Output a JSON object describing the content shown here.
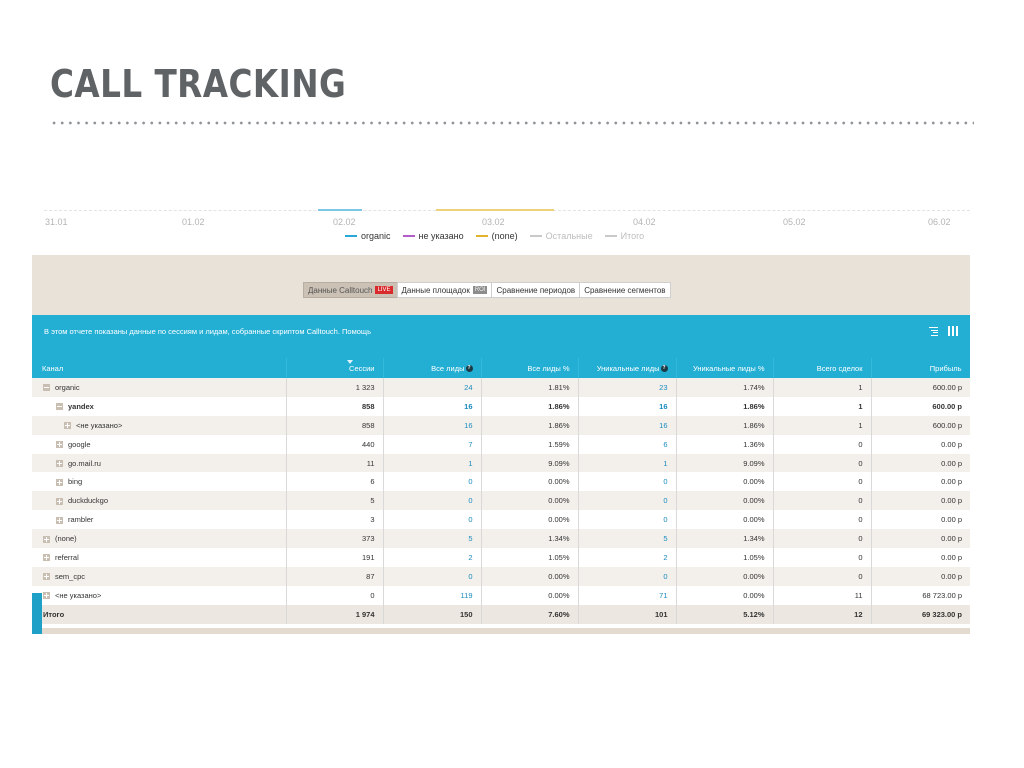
{
  "slide": {
    "title": "CALL TRACKING"
  },
  "chart": {
    "x_ticks": [
      "31.01",
      "01.02",
      "02.02",
      "03.02",
      "04.02",
      "05.02",
      "06.02"
    ],
    "legend": [
      {
        "label": "organic",
        "color": "#2aa8d8",
        "muted": false
      },
      {
        "label": "не указано",
        "color": "#b45cc7",
        "muted": false
      },
      {
        "label": "(none)",
        "color": "#e0b22e",
        "muted": false
      },
      {
        "label": "Остальные",
        "color": "#c9c9c9",
        "muted": true
      },
      {
        "label": "Итого",
        "color": "#c9c9c9",
        "muted": true
      }
    ]
  },
  "tabs": {
    "items": [
      {
        "label": "Данные Calltouch",
        "badge": "LIVE",
        "active": true
      },
      {
        "label": "Данные площадок",
        "badge": "ROI",
        "active": false
      },
      {
        "label": "Сравнение периодов",
        "badge": "",
        "active": false
      },
      {
        "label": "Сравнение сегментов",
        "badge": "",
        "active": false
      }
    ]
  },
  "info": {
    "text": "В этом отчете показаны данные по сессиям и лидам, собранные скриптом Calltouch.",
    "help_link": "Помощь",
    "sort_icon": "sort-lines-icon",
    "columns_icon": "columns-icon"
  },
  "table": {
    "headers": [
      "Канал",
      "Сессии",
      "Все лиды",
      "Все лиды %",
      "Уникальные лиды",
      "Уникальные лиды %",
      "Всего сделок",
      "Прибыль"
    ],
    "rows": [
      {
        "channel": "organic",
        "level": 0,
        "toggle": "minus",
        "bold": false,
        "sessions": "1 323",
        "leads": "24",
        "leads_pct": "1.81%",
        "unique": "23",
        "unique_pct": "1.74%",
        "deals": "1",
        "profit": "600.00 р"
      },
      {
        "channel": "yandex",
        "level": 1,
        "toggle": "minus",
        "bold": true,
        "sessions": "858",
        "leads": "16",
        "leads_pct": "1.86%",
        "unique": "16",
        "unique_pct": "1.86%",
        "deals": "1",
        "profit": "600.00 р"
      },
      {
        "channel": "<не указано>",
        "level": 2,
        "toggle": "plus",
        "bold": false,
        "sessions": "858",
        "leads": "16",
        "leads_pct": "1.86%",
        "unique": "16",
        "unique_pct": "1.86%",
        "deals": "1",
        "profit": "600.00 р"
      },
      {
        "channel": "google",
        "level": 1,
        "toggle": "plus",
        "bold": false,
        "sessions": "440",
        "leads": "7",
        "leads_pct": "1.59%",
        "unique": "6",
        "unique_pct": "1.36%",
        "deals": "0",
        "profit": "0.00 р"
      },
      {
        "channel": "go.mail.ru",
        "level": 1,
        "toggle": "plus",
        "bold": false,
        "sessions": "11",
        "leads": "1",
        "leads_pct": "9.09%",
        "unique": "1",
        "unique_pct": "9.09%",
        "deals": "0",
        "profit": "0.00 р"
      },
      {
        "channel": "bing",
        "level": 1,
        "toggle": "plus",
        "bold": false,
        "sessions": "6",
        "leads": "0",
        "leads_pct": "0.00%",
        "unique": "0",
        "unique_pct": "0.00%",
        "deals": "0",
        "profit": "0.00 р"
      },
      {
        "channel": "duckduckgo",
        "level": 1,
        "toggle": "plus",
        "bold": false,
        "sessions": "5",
        "leads": "0",
        "leads_pct": "0.00%",
        "unique": "0",
        "unique_pct": "0.00%",
        "deals": "0",
        "profit": "0.00 р"
      },
      {
        "channel": "rambler",
        "level": 1,
        "toggle": "plus",
        "bold": false,
        "sessions": "3",
        "leads": "0",
        "leads_pct": "0.00%",
        "unique": "0",
        "unique_pct": "0.00%",
        "deals": "0",
        "profit": "0.00 р"
      },
      {
        "channel": "(none)",
        "level": 0,
        "toggle": "plus",
        "bold": false,
        "sessions": "373",
        "leads": "5",
        "leads_pct": "1.34%",
        "unique": "5",
        "unique_pct": "1.34%",
        "deals": "0",
        "profit": "0.00 р"
      },
      {
        "channel": "referral",
        "level": 0,
        "toggle": "plus",
        "bold": false,
        "sessions": "191",
        "leads": "2",
        "leads_pct": "1.05%",
        "unique": "2",
        "unique_pct": "1.05%",
        "deals": "0",
        "profit": "0.00 р"
      },
      {
        "channel": "sem_cpc",
        "level": 0,
        "toggle": "plus",
        "bold": false,
        "sessions": "87",
        "leads": "0",
        "leads_pct": "0.00%",
        "unique": "0",
        "unique_pct": "0.00%",
        "deals": "0",
        "profit": "0.00 р"
      },
      {
        "channel": "<не указано>",
        "level": 0,
        "toggle": "plus",
        "bold": false,
        "sessions": "0",
        "leads": "119",
        "leads_pct": "0.00%",
        "unique": "71",
        "unique_pct": "0.00%",
        "deals": "11",
        "profit": "68 723.00 р"
      }
    ],
    "total": {
      "label": "Итого",
      "sessions": "1 974",
      "leads": "150",
      "leads_pct": "7.60%",
      "unique": "101",
      "unique_pct": "5.12%",
      "deals": "12",
      "profit": "69 323.00 р"
    }
  }
}
